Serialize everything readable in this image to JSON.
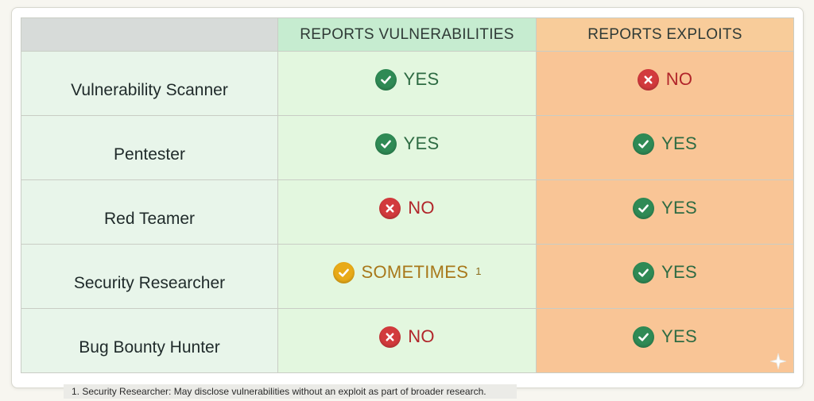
{
  "table": {
    "headers": [
      "",
      "REPORTS VULNERABILITIES",
      "REPORTS EXPLOITS"
    ],
    "rows": [
      {
        "role": "Vulnerability Scanner",
        "vuln": "YES",
        "exploits": "NO"
      },
      {
        "role": "Pentester",
        "vuln": "YES",
        "exploits": "YES"
      },
      {
        "role": "Red Teamer",
        "vuln": "NO",
        "exploits": "YES"
      },
      {
        "role": "Security Researcher",
        "vuln": "SOMETIMES",
        "vuln_footnote": "1",
        "exploits": "YES"
      },
      {
        "role": "Bug Bounty Hunter",
        "vuln": "NO",
        "exploits": "YES"
      }
    ]
  },
  "footnote": "1. Security Researcher: May disclose vulnerabilities without an exploit as part of broader research.",
  "icons": {
    "YES": "check-circle-icon",
    "NO": "x-circle-icon",
    "SOMETIMES": "check-circle-icon"
  },
  "colors": {
    "yes_badge": "#2f8a55",
    "no_badge": "#d23a3d",
    "sometimes_badge": "#e8aa18",
    "vuln_column": "#e3f7df",
    "exploit_column": "#f9c596"
  }
}
